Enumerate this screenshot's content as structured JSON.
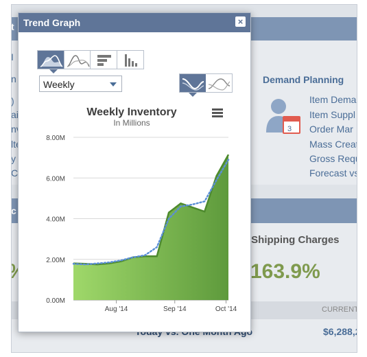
{
  "background": {
    "demand_planning": {
      "title": "Demand Planning",
      "links": [
        "Item Dema",
        "Item Suppl",
        "Order Mar",
        "Mass Creat",
        "Gross Requ",
        "Forecast vs"
      ]
    },
    "left_fragments": [
      "I",
      "n",
      ")",
      "ail",
      "nv",
      "lte",
      "y",
      "Ch"
    ],
    "header_fragment": "t",
    "section2_fragment": "c",
    "kpi": {
      "label": "f Shipping Charges",
      "value": "163.9%",
      "left_value_fragment": "%"
    },
    "table": {
      "column_header": "CURRENT",
      "row_label": "Today vs. One Month Ago",
      "row_value": "$6,288,2"
    }
  },
  "modal": {
    "title": "Trend Graph",
    "close_label": "×",
    "chart_types": [
      "area-chart-icon",
      "line-chart-icon",
      "bar-chart-icon",
      "column-chart-icon"
    ],
    "period": {
      "selected": "Weekly"
    },
    "view_toggle": [
      "filled-trend-icon",
      "trend-lines-icon"
    ]
  },
  "chart_data": {
    "type": "area",
    "title": "Weekly Inventory",
    "subtitle": "In Millions",
    "x_tick_labels": [
      "Aug '14",
      "Sep '14",
      "Oct '14"
    ],
    "y_tick_labels": [
      "0.00M",
      "2.00M",
      "4.00M",
      "6.00M",
      "8.00M"
    ],
    "ylim": [
      0,
      8
    ],
    "grid": true,
    "series": [
      {
        "values": [
          1.8,
          1.78,
          1.75,
          1.8,
          1.9,
          2.1,
          2.15,
          2.15,
          4.3,
          4.75,
          4.55,
          4.35,
          6.1,
          7.15
        ],
        "color": "#6aaa3c"
      },
      {
        "values": [
          1.78,
          1.75,
          1.8,
          1.85,
          1.95,
          2.1,
          2.2,
          2.6,
          4.0,
          4.6,
          4.7,
          4.85,
          5.9,
          6.9
        ],
        "color": "#5b8fd6"
      }
    ],
    "x_tick_index": [
      3.6,
      8.5,
      12.8
    ]
  }
}
